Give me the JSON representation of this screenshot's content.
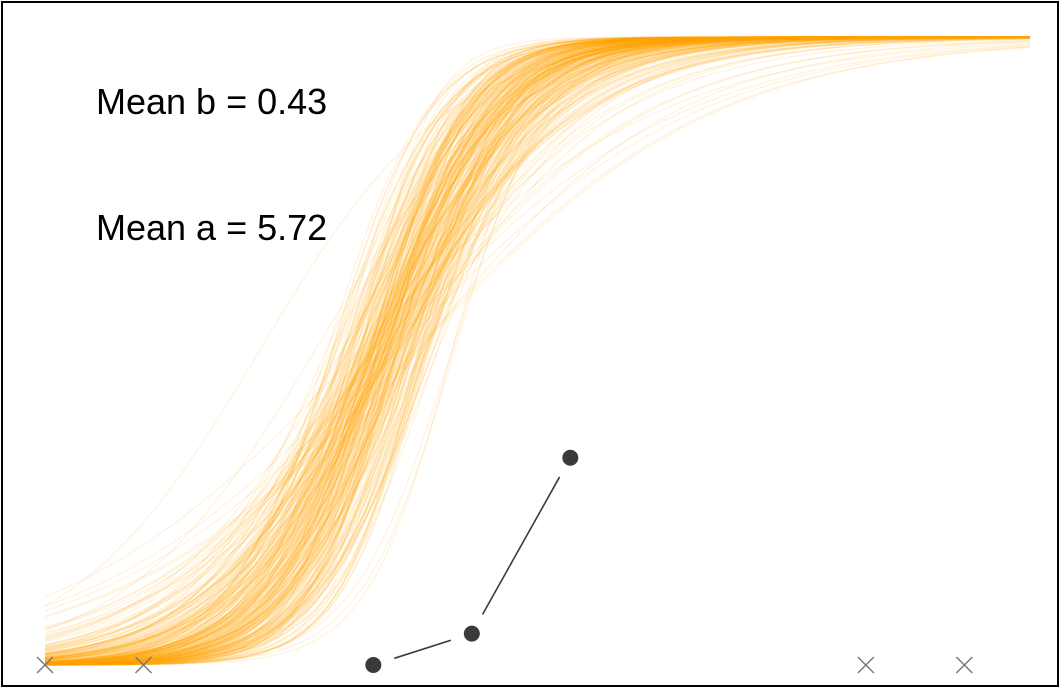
{
  "chart_data": {
    "type": "line",
    "annotations": [
      "Mean b = 0.43",
      "Mean a = 5.72"
    ],
    "curve_color": "#FFA500",
    "point_color": "#3A3A3A",
    "xlim": [
      -0.6,
      2.4
    ],
    "ylim": [
      0,
      1
    ],
    "grid": false,
    "legend": "none",
    "posterior_curves": {
      "count": 300,
      "mean_a": 5.72,
      "mean_b": 0.43,
      "model": "logistic: y = 1 / (1 + exp(-a * (x - b)))"
    },
    "observed_points": [
      {
        "x": 0.4,
        "y": 0.0
      },
      {
        "x": 0.7,
        "y": 0.05
      },
      {
        "x": 1.0,
        "y": 0.33
      }
    ],
    "x_markers": [
      -0.6,
      -0.3,
      1.9,
      2.2
    ]
  }
}
